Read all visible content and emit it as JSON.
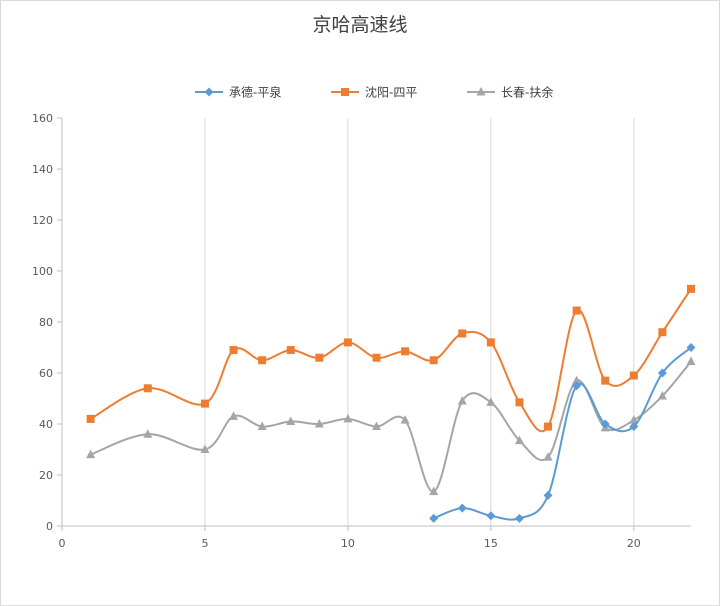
{
  "chart_data": {
    "type": "scatter",
    "title": "京哈高速线",
    "xlabel": "",
    "ylabel": "",
    "xlim": [
      0,
      22
    ],
    "ylim": [
      0,
      160
    ],
    "xticks": [
      0,
      5,
      10,
      15,
      20
    ],
    "yticks": [
      0,
      20,
      40,
      60,
      80,
      100,
      120,
      140,
      160
    ],
    "grid": "vertical",
    "legend_position": "top",
    "series": [
      {
        "name": "承德-平泉",
        "color": "#5b9bd5",
        "marker": "diamond",
        "x": [
          13,
          14,
          15,
          16,
          17,
          18,
          19,
          20,
          21,
          22
        ],
        "y": [
          3,
          7,
          4,
          3,
          12,
          55,
          40,
          39,
          60,
          70
        ]
      },
      {
        "name": "沈阳-四平",
        "color": "#ed7d31",
        "marker": "square",
        "x": [
          1,
          3,
          5,
          6,
          7,
          8,
          9,
          10,
          11,
          12,
          13,
          14,
          15,
          16,
          17,
          18,
          19,
          20,
          21,
          22
        ],
        "y": [
          42,
          54,
          48,
          69,
          65,
          69,
          66,
          72,
          66,
          68.5,
          65,
          75.5,
          72,
          48.5,
          39,
          84.5,
          57,
          59,
          76,
          93
        ]
      },
      {
        "name": "长春-扶余",
        "color": "#a5a5a5",
        "marker": "triangle",
        "x": [
          1,
          3,
          5,
          6,
          7,
          8,
          9,
          10,
          11,
          12,
          13,
          14,
          15,
          16,
          17,
          18,
          19,
          20,
          21,
          22
        ],
        "y": [
          28,
          36,
          30,
          43,
          39,
          41,
          40,
          42,
          39,
          41.5,
          13.5,
          49,
          48.5,
          33.5,
          27,
          57,
          38.5,
          41.5,
          51,
          64.5
        ]
      }
    ]
  }
}
